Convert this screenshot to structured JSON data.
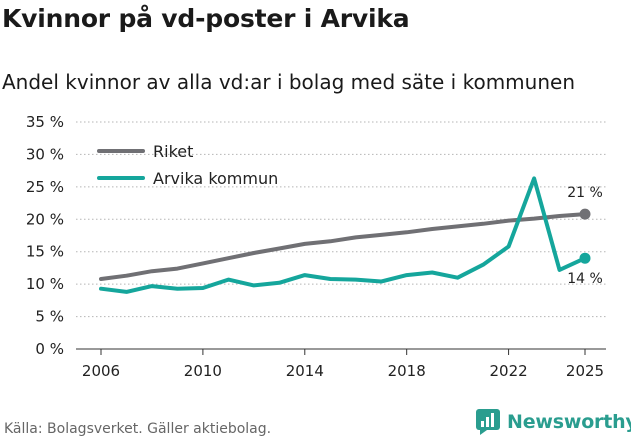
{
  "title": "Kvinnor på vd-poster i Arvika",
  "subtitle": "Andel kvinnor av alla vd:ar i bolag med säte i kommunen",
  "source": "Källa: Bolagsverket. Gäller aktiebolag.",
  "brand": {
    "name": "Newsworthy",
    "color": "#2a9d8f"
  },
  "chart_data": {
    "type": "line",
    "x": [
      2006,
      2007,
      2008,
      2009,
      2010,
      2011,
      2012,
      2013,
      2014,
      2015,
      2016,
      2017,
      2018,
      2019,
      2020,
      2021,
      2022,
      2023,
      2024,
      2025
    ],
    "series": [
      {
        "name": "Riket",
        "color": "#707074",
        "values": [
          10.8,
          11.3,
          12.0,
          12.4,
          13.2,
          14.0,
          14.8,
          15.5,
          16.2,
          16.6,
          17.2,
          17.6,
          18.0,
          18.5,
          18.9,
          19.3,
          19.8,
          20.1,
          20.5,
          20.8
        ],
        "end_label": "21 %"
      },
      {
        "name": "Arvika kommun",
        "color": "#15a69c",
        "values": [
          9.3,
          8.8,
          9.7,
          9.3,
          9.4,
          10.7,
          9.8,
          10.2,
          11.4,
          10.8,
          10.7,
          10.4,
          11.4,
          11.8,
          11.0,
          13.0,
          15.8,
          26.3,
          12.2,
          14.0
        ],
        "end_label": "14 %"
      }
    ],
    "x_ticks": [
      "2006",
      "2010",
      "2014",
      "2018",
      "2022",
      "2025"
    ],
    "x_tick_values": [
      2006,
      2010,
      2014,
      2018,
      2022,
      2025
    ],
    "y_ticks": [
      "0 %",
      "5 %",
      "10 %",
      "15 %",
      "20 %",
      "25 %",
      "30 %",
      "35 %"
    ],
    "y_tick_values": [
      0,
      5,
      10,
      15,
      20,
      25,
      30,
      35
    ],
    "ylim": [
      0,
      35
    ],
    "xlim": [
      2006,
      2025
    ],
    "grid": "horizontal dotted",
    "legend": "top-left",
    "xlabel": "",
    "ylabel": ""
  }
}
